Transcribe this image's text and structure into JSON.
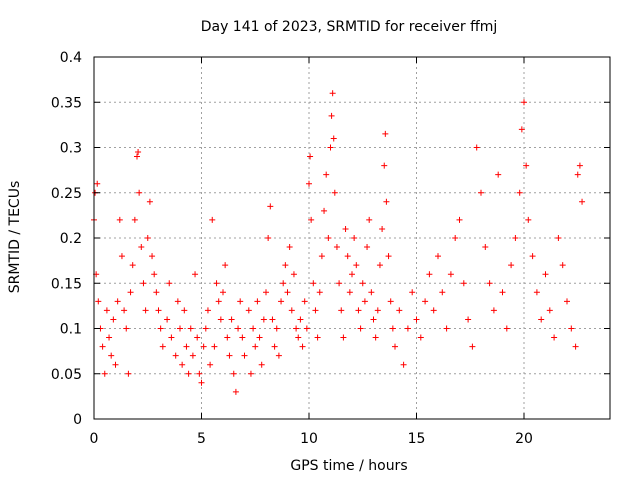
{
  "chart_data": {
    "type": "scatter",
    "title": "Day 141 of 2023, SRMTID for receiver ffmj",
    "xlabel": "GPS time / hours",
    "ylabel": "SRMTID / TECUs",
    "xlim": [
      0,
      24
    ],
    "ylim": [
      0,
      0.4
    ],
    "xticks": [
      0,
      5,
      10,
      15,
      20
    ],
    "xtick_labels": [
      "0",
      "5",
      "10",
      "15",
      "20"
    ],
    "yticks": [
      0,
      0.05,
      0.1,
      0.15,
      0.2,
      0.25,
      0.3,
      0.35,
      0.4
    ],
    "ytick_labels": [
      "0",
      "0.05",
      "0.1",
      "0.15",
      "0.2",
      "0.25",
      "0.3",
      "0.35",
      "0.4"
    ],
    "grid": true,
    "marker": "plus",
    "color": "#ff0000",
    "time_range_hours": [
      0,
      22.7
    ],
    "series": [
      {
        "points": [
          [
            0.0,
            0.22
          ],
          [
            0.05,
            0.25
          ],
          [
            0.1,
            0.16
          ],
          [
            0.15,
            0.26
          ],
          [
            0.2,
            0.13
          ],
          [
            0.3,
            0.1
          ],
          [
            0.4,
            0.08
          ],
          [
            0.5,
            0.05
          ],
          [
            0.6,
            0.12
          ],
          [
            0.7,
            0.09
          ],
          [
            0.8,
            0.07
          ],
          [
            0.9,
            0.11
          ],
          [
            1.0,
            0.06
          ],
          [
            1.1,
            0.13
          ],
          [
            1.2,
            0.22
          ],
          [
            1.3,
            0.18
          ],
          [
            1.4,
            0.12
          ],
          [
            1.5,
            0.1
          ],
          [
            1.6,
            0.05
          ],
          [
            1.7,
            0.14
          ],
          [
            1.8,
            0.17
          ],
          [
            1.9,
            0.22
          ],
          [
            2.0,
            0.29
          ],
          [
            2.05,
            0.295
          ],
          [
            2.1,
            0.25
          ],
          [
            2.2,
            0.19
          ],
          [
            2.3,
            0.15
          ],
          [
            2.4,
            0.12
          ],
          [
            2.5,
            0.2
          ],
          [
            2.6,
            0.24
          ],
          [
            2.7,
            0.18
          ],
          [
            2.8,
            0.16
          ],
          [
            2.9,
            0.14
          ],
          [
            3.0,
            0.12
          ],
          [
            3.1,
            0.1
          ],
          [
            3.2,
            0.08
          ],
          [
            3.4,
            0.11
          ],
          [
            3.5,
            0.15
          ],
          [
            3.6,
            0.09
          ],
          [
            3.8,
            0.07
          ],
          [
            3.9,
            0.13
          ],
          [
            4.0,
            0.1
          ],
          [
            4.1,
            0.06
          ],
          [
            4.2,
            0.12
          ],
          [
            4.3,
            0.08
          ],
          [
            4.4,
            0.05
          ],
          [
            4.5,
            0.1
          ],
          [
            4.6,
            0.07
          ],
          [
            4.7,
            0.16
          ],
          [
            4.8,
            0.09
          ],
          [
            4.9,
            0.05
          ],
          [
            5.0,
            0.04
          ],
          [
            5.1,
            0.08
          ],
          [
            5.2,
            0.1
          ],
          [
            5.3,
            0.12
          ],
          [
            5.4,
            0.06
          ],
          [
            5.5,
            0.22
          ],
          [
            5.6,
            0.08
          ],
          [
            5.7,
            0.15
          ],
          [
            5.8,
            0.13
          ],
          [
            5.9,
            0.11
          ],
          [
            6.0,
            0.14
          ],
          [
            6.1,
            0.17
          ],
          [
            6.2,
            0.09
          ],
          [
            6.3,
            0.07
          ],
          [
            6.4,
            0.11
          ],
          [
            6.5,
            0.05
          ],
          [
            6.6,
            0.03
          ],
          [
            6.7,
            0.1
          ],
          [
            6.8,
            0.13
          ],
          [
            6.9,
            0.09
          ],
          [
            7.0,
            0.07
          ],
          [
            7.2,
            0.12
          ],
          [
            7.3,
            0.05
          ],
          [
            7.4,
            0.1
          ],
          [
            7.5,
            0.08
          ],
          [
            7.6,
            0.13
          ],
          [
            7.7,
            0.09
          ],
          [
            7.8,
            0.06
          ],
          [
            7.9,
            0.11
          ],
          [
            8.0,
            0.14
          ],
          [
            8.1,
            0.2
          ],
          [
            8.2,
            0.235
          ],
          [
            8.3,
            0.11
          ],
          [
            8.4,
            0.08
          ],
          [
            8.5,
            0.1
          ],
          [
            8.6,
            0.07
          ],
          [
            8.7,
            0.13
          ],
          [
            8.8,
            0.15
          ],
          [
            8.9,
            0.17
          ],
          [
            9.0,
            0.14
          ],
          [
            9.1,
            0.19
          ],
          [
            9.2,
            0.12
          ],
          [
            9.3,
            0.16
          ],
          [
            9.4,
            0.1
          ],
          [
            9.5,
            0.09
          ],
          [
            9.6,
            0.11
          ],
          [
            9.7,
            0.08
          ],
          [
            9.8,
            0.13
          ],
          [
            9.9,
            0.1
          ],
          [
            10.0,
            0.26
          ],
          [
            10.05,
            0.29
          ],
          [
            10.1,
            0.22
          ],
          [
            10.2,
            0.15
          ],
          [
            10.3,
            0.12
          ],
          [
            10.4,
            0.09
          ],
          [
            10.5,
            0.14
          ],
          [
            10.6,
            0.18
          ],
          [
            10.7,
            0.23
          ],
          [
            10.8,
            0.27
          ],
          [
            10.9,
            0.2
          ],
          [
            11.0,
            0.3
          ],
          [
            11.05,
            0.335
          ],
          [
            11.1,
            0.36
          ],
          [
            11.15,
            0.31
          ],
          [
            11.2,
            0.25
          ],
          [
            11.3,
            0.19
          ],
          [
            11.4,
            0.15
          ],
          [
            11.5,
            0.12
          ],
          [
            11.6,
            0.09
          ],
          [
            11.7,
            0.21
          ],
          [
            11.8,
            0.18
          ],
          [
            11.9,
            0.14
          ],
          [
            12.0,
            0.16
          ],
          [
            12.1,
            0.2
          ],
          [
            12.2,
            0.17
          ],
          [
            12.3,
            0.12
          ],
          [
            12.4,
            0.1
          ],
          [
            12.5,
            0.15
          ],
          [
            12.6,
            0.13
          ],
          [
            12.7,
            0.19
          ],
          [
            12.8,
            0.22
          ],
          [
            12.9,
            0.14
          ],
          [
            13.0,
            0.11
          ],
          [
            13.1,
            0.09
          ],
          [
            13.2,
            0.12
          ],
          [
            13.3,
            0.17
          ],
          [
            13.4,
            0.21
          ],
          [
            13.5,
            0.28
          ],
          [
            13.55,
            0.315
          ],
          [
            13.6,
            0.24
          ],
          [
            13.7,
            0.18
          ],
          [
            13.8,
            0.13
          ],
          [
            13.9,
            0.1
          ],
          [
            14.0,
            0.08
          ],
          [
            14.2,
            0.12
          ],
          [
            14.4,
            0.06
          ],
          [
            14.6,
            0.1
          ],
          [
            14.8,
            0.14
          ],
          [
            15.0,
            0.11
          ],
          [
            15.2,
            0.09
          ],
          [
            15.4,
            0.13
          ],
          [
            15.6,
            0.16
          ],
          [
            15.8,
            0.12
          ],
          [
            16.0,
            0.18
          ],
          [
            16.2,
            0.14
          ],
          [
            16.4,
            0.1
          ],
          [
            16.6,
            0.16
          ],
          [
            16.8,
            0.2
          ],
          [
            17.0,
            0.22
          ],
          [
            17.2,
            0.15
          ],
          [
            17.4,
            0.11
          ],
          [
            17.6,
            0.08
          ],
          [
            17.8,
            0.3
          ],
          [
            18.0,
            0.25
          ],
          [
            18.2,
            0.19
          ],
          [
            18.4,
            0.15
          ],
          [
            18.6,
            0.12
          ],
          [
            18.8,
            0.27
          ],
          [
            19.0,
            0.14
          ],
          [
            19.2,
            0.1
          ],
          [
            19.4,
            0.17
          ],
          [
            19.6,
            0.2
          ],
          [
            19.8,
            0.25
          ],
          [
            19.9,
            0.32
          ],
          [
            20.0,
            0.35
          ],
          [
            20.1,
            0.28
          ],
          [
            20.2,
            0.22
          ],
          [
            20.4,
            0.18
          ],
          [
            20.6,
            0.14
          ],
          [
            20.8,
            0.11
          ],
          [
            21.0,
            0.16
          ],
          [
            21.2,
            0.12
          ],
          [
            21.4,
            0.09
          ],
          [
            21.6,
            0.2
          ],
          [
            21.8,
            0.17
          ],
          [
            22.0,
            0.13
          ],
          [
            22.2,
            0.1
          ],
          [
            22.4,
            0.08
          ],
          [
            22.5,
            0.27
          ],
          [
            22.6,
            0.28
          ],
          [
            22.7,
            0.24
          ]
        ]
      }
    ]
  }
}
